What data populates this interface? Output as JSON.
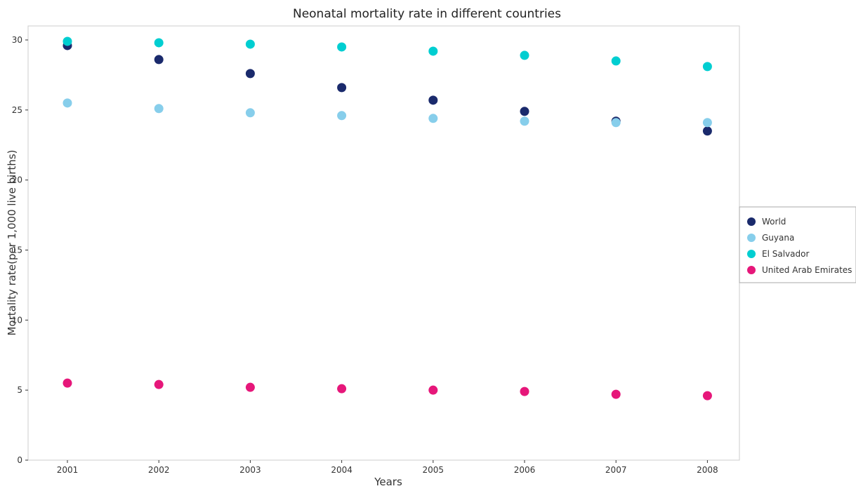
{
  "chart_data": {
    "type": "scatter",
    "title": "Neonatal mortality rate in different countries",
    "xlabel": "Years",
    "ylabel": "Mortality rate(per 1,000 live births)",
    "categories": [
      "2001",
      "2002",
      "2003",
      "2004",
      "2005",
      "2006",
      "2007",
      "2008"
    ],
    "ylim": [
      0,
      31
    ],
    "yticks": [
      0,
      5,
      10,
      15,
      20,
      25,
      30
    ],
    "grid": false,
    "legend_position": "right",
    "series": [
      {
        "name": "World",
        "color": "#1a2a6c",
        "values": [
          29.6,
          28.6,
          27.6,
          26.6,
          25.7,
          24.9,
          24.2,
          23.5
        ]
      },
      {
        "name": "Guyana",
        "color": "#87ceeb",
        "values": [
          25.5,
          25.1,
          24.8,
          24.6,
          24.4,
          24.2,
          24.1,
          24.1
        ]
      },
      {
        "name": "El Salvador",
        "color": "#00ced1",
        "values": [
          29.9,
          29.8,
          29.7,
          29.5,
          29.2,
          28.9,
          28.5,
          28.1
        ]
      },
      {
        "name": "United Arab Emirates",
        "color": "#e6177a",
        "values": [
          5.5,
          5.4,
          5.2,
          5.1,
          5.0,
          4.9,
          4.7,
          4.6
        ]
      }
    ]
  }
}
